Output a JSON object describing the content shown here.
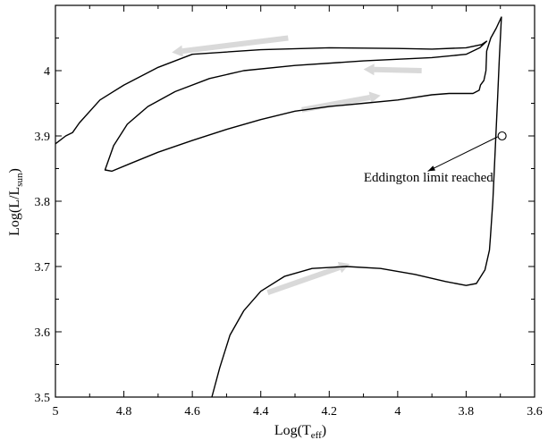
{
  "chart_data": {
    "type": "line",
    "xlabel": {
      "main": "Log(T",
      "sub": "eff",
      "close": ")"
    },
    "ylabel": {
      "main": "Log(L/L",
      "sub": "sun",
      "close": ")"
    },
    "xlim": [
      5.0,
      3.6
    ],
    "ylim": [
      3.5,
      4.1
    ],
    "x_reversed": true,
    "grid": false,
    "x_ticks": [
      5.0,
      4.8,
      4.6,
      4.4,
      4.2,
      4.0,
      3.8,
      3.6
    ],
    "x_tick_labels": [
      "5",
      "4.8",
      "4.6",
      "4.4",
      "4.2",
      "4",
      "3.8",
      "3.6"
    ],
    "y_ticks": [
      3.5,
      3.6,
      3.7,
      3.8,
      3.9,
      4.0
    ],
    "y_tick_labels": [
      "3.5",
      "3.6",
      "3.7",
      "3.8",
      "3.9",
      "4"
    ],
    "series": [
      {
        "points": [
          [
            4.543,
            3.5
          ],
          [
            4.52,
            3.545
          ],
          [
            4.49,
            3.595
          ],
          [
            4.45,
            3.632
          ],
          [
            4.4,
            3.662
          ],
          [
            4.33,
            3.685
          ],
          [
            4.25,
            3.697
          ],
          [
            4.15,
            3.7
          ],
          [
            4.05,
            3.697
          ],
          [
            3.95,
            3.688
          ],
          [
            3.86,
            3.677
          ],
          [
            3.8,
            3.671
          ],
          [
            3.77,
            3.674
          ],
          [
            3.745,
            3.695
          ],
          [
            3.732,
            3.725
          ],
          [
            3.729,
            3.745
          ],
          [
            3.722,
            3.8
          ],
          [
            3.715,
            3.88
          ],
          [
            3.708,
            3.96
          ],
          [
            3.703,
            4.02
          ],
          [
            3.699,
            4.06
          ],
          [
            3.697,
            4.082
          ],
          [
            3.712,
            4.065
          ],
          [
            3.728,
            4.05
          ],
          [
            3.74,
            4.03
          ],
          [
            3.742,
            4.0
          ],
          [
            3.748,
            3.985
          ],
          [
            3.758,
            3.978
          ],
          [
            3.762,
            3.97
          ],
          [
            3.78,
            3.965
          ],
          [
            3.85,
            3.965
          ],
          [
            3.9,
            3.963
          ],
          [
            4.0,
            3.955
          ],
          [
            4.1,
            3.95
          ],
          [
            4.2,
            3.945
          ],
          [
            4.3,
            3.938
          ],
          [
            4.4,
            3.925
          ],
          [
            4.5,
            3.91
          ],
          [
            4.6,
            3.893
          ],
          [
            4.7,
            3.875
          ],
          [
            4.78,
            3.858
          ],
          [
            4.835,
            3.846
          ],
          [
            4.855,
            3.848
          ],
          [
            4.83,
            3.885
          ],
          [
            4.79,
            3.918
          ],
          [
            4.73,
            3.945
          ],
          [
            4.65,
            3.968
          ],
          [
            4.55,
            3.988
          ],
          [
            4.45,
            4.0
          ],
          [
            4.3,
            4.008
          ],
          [
            4.1,
            4.015
          ],
          [
            3.9,
            4.02
          ],
          [
            3.8,
            4.025
          ],
          [
            3.76,
            4.035
          ],
          [
            3.74,
            4.045
          ],
          [
            3.755,
            4.04
          ],
          [
            3.8,
            4.035
          ],
          [
            3.9,
            4.033
          ],
          [
            4.0,
            4.034
          ],
          [
            4.2,
            4.035
          ],
          [
            4.4,
            4.032
          ],
          [
            4.6,
            4.025
          ],
          [
            4.7,
            4.005
          ],
          [
            4.8,
            3.978
          ],
          [
            4.87,
            3.955
          ],
          [
            4.93,
            3.92
          ],
          [
            4.95,
            3.905
          ],
          [
            4.97,
            3.9
          ],
          [
            5.0,
            3.888
          ]
        ]
      }
    ],
    "direction_arrows": [
      {
        "from": [
          4.38,
          3.66
        ],
        "to": [
          4.14,
          3.704
        ]
      },
      {
        "from": [
          4.28,
          3.94
        ],
        "to": [
          4.05,
          3.962
        ]
      },
      {
        "from": [
          3.93,
          4.0
        ],
        "to": [
          4.1,
          4.002
        ]
      },
      {
        "from": [
          4.32,
          4.05
        ],
        "to": [
          4.66,
          4.028
        ]
      }
    ],
    "annotations": [
      {
        "text": "Eddington limit reached",
        "text_pos": [
          3.91,
          3.83
        ],
        "arrow_from": [
          3.695,
          3.9
        ],
        "arrow_to": [
          3.912,
          3.846
        ],
        "marker": [
          3.695,
          3.9
        ]
      }
    ]
  }
}
